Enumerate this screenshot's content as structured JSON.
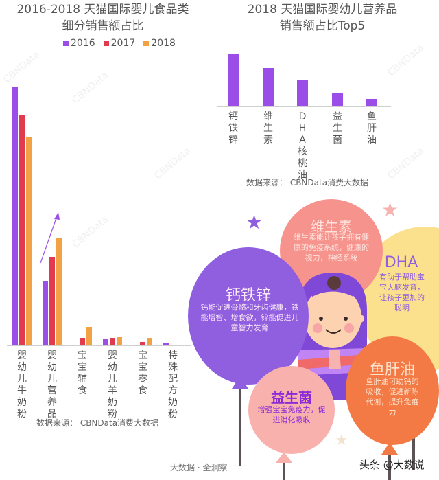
{
  "left_chart": {
    "title_line1": "2016-2018 天猫国际婴儿食品类",
    "title_line2": "细分销售额占比",
    "legend": [
      {
        "label": "2016",
        "color": "#9b4de8"
      },
      {
        "label": "2017",
        "color": "#e23b4f"
      },
      {
        "label": "2018",
        "color": "#f2a144"
      }
    ],
    "categories": [
      "婴幼儿牛奶粉",
      "婴幼儿营养品",
      "宝宝辅食",
      "婴幼儿羊奶粉",
      "宝宝零食",
      "特殊配方奶粉"
    ],
    "source": "数据来源： CBNData消费大数据"
  },
  "right_chart": {
    "title_line1": "2018 天猫国际婴幼儿营养品",
    "title_line2": "销售额占比Top5",
    "categories": [
      "钙铁锌",
      "维生素",
      "DHA/核桃油",
      "益生菌",
      "鱼肝油"
    ],
    "bar_color": "#9b4de8",
    "source": "数据来源： CBNData消费大数据"
  },
  "infographic": {
    "balloons": [
      {
        "title": "钙铁锌",
        "text": "钙能促进骨骼和牙齿健康，铁能增智、增食欲，锌能促进儿童智力发育",
        "color": "#8f5fe0"
      },
      {
        "title": "维生素",
        "text": "维生素能让孩子拥有健康的免疫系统，健康的视力，神经系统",
        "color": "#f7938d"
      },
      {
        "title": "DHA",
        "text": "有助于帮助宝宝大脑发育，让孩子更加的聪明",
        "color": "#fbe08e"
      },
      {
        "title": "益生菌",
        "text": "增强宝宝免疫力，促进消化吸收",
        "color": "#f9b1ae"
      },
      {
        "title": "鱼肝油",
        "text": "鱼肝油可助钙的吸收，促进新陈代谢，提升免疫力",
        "color": "#f37a45"
      }
    ],
    "footer": "大数据 · 全洞察",
    "credit": "头条 @大数说",
    "watermark": "CBNData"
  },
  "chart_data": [
    {
      "type": "bar",
      "title": "2016-2018 天猫国际婴儿食品类细分销售额占比",
      "xlabel": "",
      "ylabel": "销售额占比 (relative, no axis shown)",
      "categories": [
        "婴幼儿牛奶粉",
        "婴幼儿营养品",
        "宝宝辅食",
        "婴幼儿羊奶粉",
        "宝宝零食",
        "特殊配方奶粉"
      ],
      "series": [
        {
          "name": "2016",
          "color": "#9b4de8",
          "values": [
            75.4,
            18.8,
            0,
            2.0,
            0,
            0.6
          ]
        },
        {
          "name": "2017",
          "color": "#e23b4f",
          "values": [
            67.0,
            25.8,
            2.2,
            2.2,
            1.0,
            0.2
          ]
        },
        {
          "name": "2018",
          "color": "#f2a144",
          "values": [
            60.8,
            31.4,
            5.4,
            2.4,
            2.2,
            0.1
          ]
        }
      ],
      "ylim": [
        0,
        80
      ],
      "grid": false,
      "legend_position": "top",
      "annotations": [
        "upward arrow over 婴幼儿营养品 indicating growth"
      ]
    },
    {
      "type": "bar",
      "title": "2018 天猫国际婴幼儿营养品销售额占比Top5",
      "xlabel": "",
      "ylabel": "销售额占比 (relative, no axis shown)",
      "categories": [
        "钙铁锌",
        "维生素",
        "DHA/核桃油",
        "益生菌",
        "鱼肝油"
      ],
      "values": [
        77,
        56,
        39,
        20,
        11
      ],
      "ylim": [
        0,
        80
      ],
      "grid": false
    }
  ]
}
